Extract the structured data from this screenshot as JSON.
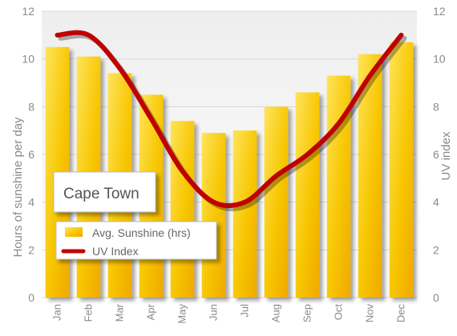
{
  "chart_data": {
    "type": "bar",
    "categories": [
      "Jan",
      "Feb",
      "Mar",
      "Apr",
      "May",
      "Jun",
      "Jul",
      "Aug",
      "Sep",
      "Oct",
      "Nov",
      "Dec"
    ],
    "series": [
      {
        "name": "Avg. Sunshine (hrs)",
        "type": "bar",
        "axis": "left",
        "values": [
          10.5,
          10.1,
          9.4,
          8.5,
          7.4,
          6.9,
          7.0,
          8.0,
          8.6,
          9.3,
          10.2,
          10.7
        ]
      },
      {
        "name": "UV Index",
        "type": "line",
        "axis": "right",
        "values": [
          11,
          11,
          9.6,
          7.5,
          5.3,
          4.0,
          4.0,
          5.1,
          6.0,
          7.3,
          9.3,
          11
        ]
      }
    ],
    "title": "Cape Town",
    "ylabel": "Hours of sunshine per day",
    "y2label": "UV index",
    "ylim": [
      0,
      12
    ],
    "y2lim": [
      0,
      12
    ],
    "yticks": [
      0,
      2,
      4,
      6,
      8,
      10,
      12
    ],
    "y2ticks": [
      0,
      2,
      4,
      6,
      8,
      10,
      12
    ],
    "grid": true,
    "legend_position": "bottom-left",
    "colors": {
      "bar": "#f7c600",
      "bar_light": "#ffe45c",
      "line": "#c00000",
      "grid": "#d9d9d9"
    }
  }
}
